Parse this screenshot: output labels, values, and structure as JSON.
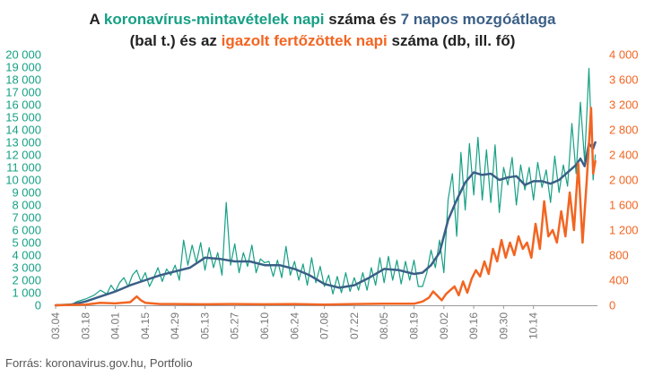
{
  "title": {
    "line1": [
      {
        "text": "A ",
        "style": "plain"
      },
      {
        "text": "koronavírus-mintavételek napi",
        "style": "green"
      },
      {
        "text": " száma és ",
        "style": "plain"
      },
      {
        "text": "7 napos mozgóátlaga",
        "style": "blue"
      }
    ],
    "line2": [
      {
        "text": "(bal t.) és az ",
        "style": "plain"
      },
      {
        "text": "igazolt fertőzöttek napi",
        "style": "orange"
      },
      {
        "text": " száma (db, ill. fő)",
        "style": "plain"
      }
    ]
  },
  "source": "Forrás: koronavirus.gov.hu, Portfolio",
  "colors": {
    "tests": "#16a085",
    "average": "#3a5f86",
    "cases": "#f26522",
    "left_axis_text": "#16a085",
    "right_axis_text": "#f26522",
    "x_axis_text": "#777777"
  },
  "chart_data": {
    "type": "line",
    "x_start_date": "03.04",
    "x_tick_labels": [
      "03.04",
      "03.18",
      "04.01",
      "04.15",
      "04.29",
      "05.13",
      "05.27",
      "06.10",
      "06.24",
      "07.08",
      "07.22",
      "08.05",
      "08.19",
      "09.02",
      "09.16",
      "09.30",
      "10.14"
    ],
    "y_left": {
      "min": 0,
      "max": 20000,
      "step": 1000,
      "tick_labels": [
        "0",
        "1 000",
        "2 000",
        "3 000",
        "4 000",
        "5 000",
        "6 000",
        "7 000",
        "8 000",
        "9 000",
        "10 000",
        "11 000",
        "12 000",
        "13 000",
        "14 000",
        "15 000",
        "16 000",
        "17 000",
        "18 000",
        "19 000",
        "20 000"
      ]
    },
    "y_right": {
      "min": 0,
      "max": 4000,
      "step": 400,
      "tick_labels": [
        "0",
        "400",
        "800",
        "1 200",
        "1 600",
        "2 000",
        "2 400",
        "2 800",
        "3 200",
        "3 600",
        "4 000"
      ]
    },
    "grid": false,
    "series": [
      {
        "axis": "left",
        "color_key": "tests",
        "width": 1.2,
        "points": [
          [
            0,
            0
          ],
          [
            7,
            0
          ],
          [
            10,
            300
          ],
          [
            14,
            500
          ],
          [
            18,
            800
          ],
          [
            21,
            1200
          ],
          [
            24,
            900
          ],
          [
            26,
            1600
          ],
          [
            28,
            1100
          ],
          [
            30,
            1800
          ],
          [
            32,
            2200
          ],
          [
            34,
            1500
          ],
          [
            36,
            2400
          ],
          [
            38,
            2800
          ],
          [
            40,
            1900
          ],
          [
            42,
            2600
          ],
          [
            44,
            1500
          ],
          [
            46,
            2200
          ],
          [
            48,
            3000
          ],
          [
            50,
            1900
          ],
          [
            52,
            2900
          ],
          [
            54,
            2400
          ],
          [
            56,
            3200
          ],
          [
            58,
            2000
          ],
          [
            60,
            5200
          ],
          [
            62,
            3200
          ],
          [
            64,
            4800
          ],
          [
            66,
            3400
          ],
          [
            68,
            5000
          ],
          [
            70,
            2800
          ],
          [
            72,
            4600
          ],
          [
            74,
            3000
          ],
          [
            76,
            4200
          ],
          [
            78,
            2400
          ],
          [
            80,
            8200
          ],
          [
            82,
            3200
          ],
          [
            84,
            4900
          ],
          [
            86,
            2600
          ],
          [
            88,
            4200
          ],
          [
            90,
            3100
          ],
          [
            92,
            4800
          ],
          [
            94,
            2600
          ],
          [
            96,
            3700
          ],
          [
            98,
            3400
          ],
          [
            100,
            3500
          ],
          [
            102,
            2300
          ],
          [
            104,
            3600
          ],
          [
            106,
            2200
          ],
          [
            108,
            4700
          ],
          [
            110,
            2400
          ],
          [
            112,
            3500
          ],
          [
            114,
            2000
          ],
          [
            116,
            3300
          ],
          [
            118,
            1600
          ],
          [
            120,
            3800
          ],
          [
            122,
            1800
          ],
          [
            124,
            3100
          ],
          [
            126,
            1500
          ],
          [
            128,
            2400
          ],
          [
            130,
            900
          ],
          [
            132,
            2300
          ],
          [
            134,
            1000
          ],
          [
            136,
            2600
          ],
          [
            138,
            1100
          ],
          [
            140,
            2200
          ],
          [
            142,
            1200
          ],
          [
            144,
            2600
          ],
          [
            146,
            1200
          ],
          [
            148,
            3000
          ],
          [
            150,
            1600
          ],
          [
            152,
            3800
          ],
          [
            154,
            1800
          ],
          [
            156,
            3900
          ],
          [
            158,
            2000
          ],
          [
            160,
            3600
          ],
          [
            162,
            1700
          ],
          [
            164,
            3500
          ],
          [
            166,
            2000
          ],
          [
            168,
            3600
          ],
          [
            170,
            1500
          ],
          [
            172,
            1500
          ],
          [
            174,
            2600
          ],
          [
            176,
            4400
          ],
          [
            178,
            3000
          ],
          [
            180,
            5200
          ],
          [
            182,
            2600
          ],
          [
            184,
            8400
          ],
          [
            186,
            10500
          ],
          [
            188,
            5500
          ],
          [
            190,
            12200
          ],
          [
            192,
            7600
          ],
          [
            194,
            12900
          ],
          [
            196,
            8800
          ],
          [
            198,
            13400
          ],
          [
            200,
            8400
          ],
          [
            202,
            12400
          ],
          [
            204,
            8200
          ],
          [
            206,
            12800
          ],
          [
            208,
            7400
          ],
          [
            210,
            11000
          ],
          [
            212,
            9600
          ],
          [
            214,
            11800
          ],
          [
            216,
            8000
          ],
          [
            218,
            11200
          ],
          [
            220,
            9200
          ],
          [
            222,
            11000
          ],
          [
            224,
            8400
          ],
          [
            226,
            11400
          ],
          [
            228,
            9400
          ],
          [
            230,
            10800
          ],
          [
            232,
            8200
          ],
          [
            234,
            11900
          ],
          [
            236,
            9000
          ],
          [
            238,
            11200
          ],
          [
            240,
            9500
          ],
          [
            242,
            14500
          ],
          [
            244,
            10500
          ],
          [
            246,
            16200
          ],
          [
            248,
            11500
          ],
          [
            250,
            18900
          ],
          [
            252,
            10000
          ],
          [
            253,
            12000
          ]
        ]
      },
      {
        "axis": "left",
        "color_key": "average",
        "width": 2.5,
        "points": [
          [
            0,
            0
          ],
          [
            7,
            50
          ],
          [
            14,
            300
          ],
          [
            21,
            700
          ],
          [
            28,
            1100
          ],
          [
            35,
            1600
          ],
          [
            42,
            2000
          ],
          [
            49,
            2400
          ],
          [
            56,
            2700
          ],
          [
            63,
            3000
          ],
          [
            70,
            3800
          ],
          [
            77,
            3700
          ],
          [
            84,
            3500
          ],
          [
            91,
            3500
          ],
          [
            98,
            3200
          ],
          [
            105,
            3200
          ],
          [
            112,
            2900
          ],
          [
            119,
            2400
          ],
          [
            126,
            1700
          ],
          [
            133,
            1400
          ],
          [
            140,
            1600
          ],
          [
            147,
            2200
          ],
          [
            154,
            2900
          ],
          [
            161,
            2800
          ],
          [
            168,
            2500
          ],
          [
            172,
            2600
          ],
          [
            176,
            3200
          ],
          [
            180,
            4200
          ],
          [
            184,
            6800
          ],
          [
            188,
            8400
          ],
          [
            192,
            9800
          ],
          [
            196,
            10600
          ],
          [
            200,
            10400
          ],
          [
            204,
            10500
          ],
          [
            208,
            10000
          ],
          [
            212,
            10200
          ],
          [
            216,
            10300
          ],
          [
            220,
            9600
          ],
          [
            224,
            9900
          ],
          [
            228,
            9900
          ],
          [
            232,
            9700
          ],
          [
            236,
            10000
          ],
          [
            240,
            10600
          ],
          [
            244,
            11200
          ],
          [
            246,
            11700
          ],
          [
            248,
            11100
          ],
          [
            250,
            12900
          ],
          [
            252,
            12500
          ],
          [
            253,
            13000
          ]
        ]
      },
      {
        "axis": "right",
        "color_key": "cases",
        "width": 2.5,
        "points": [
          [
            0,
            0
          ],
          [
            14,
            10
          ],
          [
            21,
            40
          ],
          [
            28,
            30
          ],
          [
            35,
            50
          ],
          [
            38,
            140
          ],
          [
            40,
            80
          ],
          [
            42,
            40
          ],
          [
            49,
            20
          ],
          [
            56,
            20
          ],
          [
            70,
            15
          ],
          [
            84,
            20
          ],
          [
            98,
            15
          ],
          [
            112,
            20
          ],
          [
            126,
            10
          ],
          [
            140,
            20
          ],
          [
            154,
            25
          ],
          [
            168,
            25
          ],
          [
            172,
            60
          ],
          [
            175,
            120
          ],
          [
            177,
            220
          ],
          [
            179,
            150
          ],
          [
            181,
            80
          ],
          [
            183,
            180
          ],
          [
            185,
            240
          ],
          [
            187,
            300
          ],
          [
            189,
            160
          ],
          [
            191,
            380
          ],
          [
            193,
            200
          ],
          [
            195,
            420
          ],
          [
            197,
            560
          ],
          [
            199,
            460
          ],
          [
            201,
            700
          ],
          [
            203,
            500
          ],
          [
            205,
            900
          ],
          [
            207,
            700
          ],
          [
            209,
            1040
          ],
          [
            211,
            760
          ],
          [
            213,
            1000
          ],
          [
            215,
            800
          ],
          [
            217,
            1100
          ],
          [
            219,
            900
          ],
          [
            221,
            1000
          ],
          [
            223,
            760
          ],
          [
            225,
            1300
          ],
          [
            227,
            900
          ],
          [
            229,
            1660
          ],
          [
            231,
            1100
          ],
          [
            233,
            1200
          ],
          [
            235,
            1000
          ],
          [
            237,
            1500
          ],
          [
            239,
            1100
          ],
          [
            241,
            1800
          ],
          [
            243,
            1200
          ],
          [
            245,
            2260
          ],
          [
            247,
            1000
          ],
          [
            249,
            2000
          ],
          [
            251,
            3150
          ],
          [
            252,
            2100
          ],
          [
            253,
            2300
          ]
        ]
      }
    ]
  }
}
